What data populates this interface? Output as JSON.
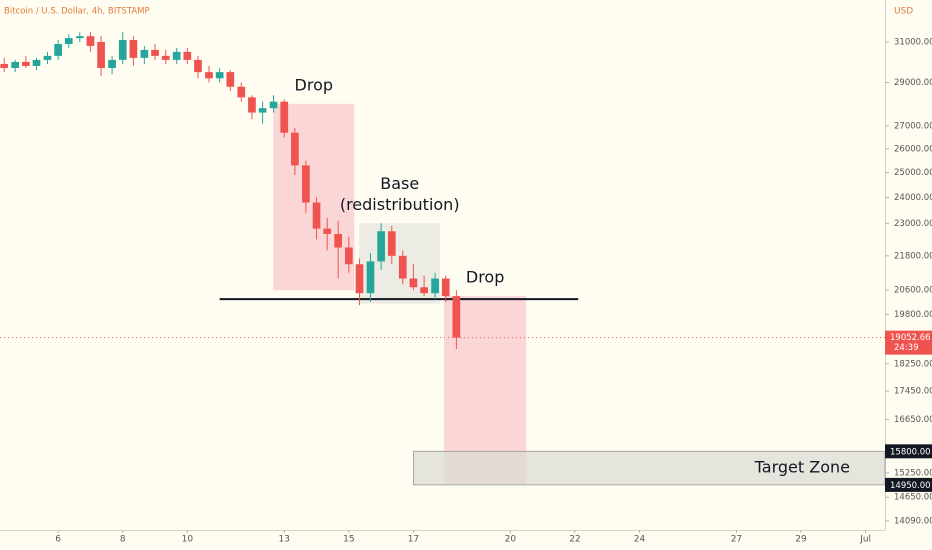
{
  "chart_data": {
    "type": "candlestick",
    "title": "Bitcoin / U.S. Dollar, 4h, BITSTAMP",
    "currency": "USD",
    "log_scale": true,
    "up_color": "#26a69a",
    "down_color": "#ef5350",
    "x": [
      4.33,
      4.67,
      5.0,
      5.33,
      5.67,
      6.0,
      6.33,
      6.67,
      7.0,
      7.33,
      7.67,
      8.0,
      8.33,
      8.67,
      9.0,
      9.33,
      9.67,
      10.0,
      10.33,
      10.67,
      11.0,
      11.33,
      11.67,
      12.0,
      12.33,
      12.67,
      13.0,
      13.33,
      13.67,
      14.0,
      14.33,
      14.67,
      15.0,
      15.33,
      15.67,
      16.0,
      16.33,
      16.67,
      17.0,
      17.33,
      17.67,
      18.0,
      18.33
    ],
    "open": [
      29900,
      29700,
      30000,
      29800,
      30100,
      30300,
      30900,
      31200,
      31300,
      31000,
      29700,
      30100,
      31100,
      30200,
      30600,
      30300,
      30100,
      30500,
      30100,
      29500,
      29200,
      29500,
      28800,
      28300,
      27600,
      27800,
      28100,
      26700,
      25300,
      23800,
      22800,
      22600,
      22100,
      21500,
      20500,
      21600,
      22700,
      21800,
      21000,
      20700,
      20500,
      21000,
      20400
    ],
    "high": [
      30200,
      30100,
      30300,
      30200,
      30500,
      31100,
      31400,
      31500,
      31500,
      31300,
      30300,
      31500,
      31300,
      30800,
      30900,
      30600,
      30700,
      30700,
      30300,
      29800,
      29700,
      29600,
      29000,
      28400,
      28100,
      28400,
      28200,
      26900,
      25500,
      24000,
      23200,
      23100,
      22500,
      21700,
      21900,
      23000,
      22900,
      22000,
      21500,
      21100,
      21200,
      21100,
      20600
    ],
    "low": [
      29500,
      29500,
      29700,
      29600,
      29900,
      30100,
      30700,
      31000,
      30500,
      29300,
      29400,
      29900,
      29800,
      29900,
      30100,
      29900,
      29900,
      29900,
      29200,
      29000,
      29000,
      28600,
      28100,
      27300,
      27100,
      27600,
      26500,
      24900,
      23400,
      22400,
      22000,
      21000,
      21200,
      20100,
      20200,
      21300,
      21500,
      20800,
      20600,
      20400,
      20300,
      20200,
      18700
    ],
    "close": [
      29700,
      30000,
      29800,
      30100,
      30300,
      30900,
      31200,
      31300,
      30800,
      29700,
      30100,
      31100,
      30200,
      30600,
      30300,
      30100,
      30500,
      30100,
      29500,
      29200,
      29500,
      28800,
      28300,
      27600,
      27800,
      28100,
      26700,
      25300,
      23800,
      22800,
      22600,
      22100,
      21500,
      20500,
      21600,
      22700,
      21800,
      21000,
      20700,
      20500,
      21000,
      20400,
      19052.66
    ],
    "last_price": 19052.66,
    "countdown": "24:39",
    "xlim": [
      4.2,
      31.6
    ],
    "ylim": [
      13880,
      33220
    ],
    "xticks": [
      6,
      8,
      10,
      13,
      15,
      17,
      20,
      22,
      24,
      27,
      29,
      {
        "value": 31,
        "label": "Jul"
      }
    ],
    "yticks": [
      {
        "value": 31000,
        "label": "31000.00"
      },
      {
        "value": 29000,
        "label": "29000.00"
      },
      {
        "value": 27000,
        "label": "27000.00"
      },
      {
        "value": 26000,
        "label": "26000.00"
      },
      {
        "value": 25000,
        "label": "25000.00"
      },
      {
        "value": 24000,
        "label": "24000.00"
      },
      {
        "value": 23000,
        "label": "23000.00"
      },
      {
        "value": 21800,
        "label": "21800.00"
      },
      {
        "value": 20600,
        "label": "20600.00"
      },
      {
        "value": 19800,
        "label": "19800.00"
      },
      {
        "value": 18250,
        "label": "18250.00"
      },
      {
        "value": 17450,
        "label": "17450.00"
      },
      {
        "value": 16650,
        "label": "16650.00"
      },
      {
        "value": 15250,
        "label": "15250.00"
      },
      {
        "value": 14650,
        "label": "14650.00"
      },
      {
        "value": 14090,
        "label": "14090.00"
      }
    ],
    "price_markers": [
      {
        "value": 15800,
        "label": "15800.00"
      },
      {
        "value": 14950,
        "label": "14950.00"
      }
    ],
    "zones": [
      {
        "labels": [
          "Drop"
        ],
        "xlim": [
          12.66,
          15.17
        ],
        "ylim": [
          20600,
          28000
        ],
        "color": "#f8c8cc",
        "label_pos": "top"
      },
      {
        "labels": [
          "Base",
          "(redistribution)"
        ],
        "xlim": [
          15.32,
          17.83
        ],
        "ylim": [
          20150,
          23000
        ],
        "color": "#e6e6e0",
        "label_pos": "top"
      },
      {
        "labels": [
          "Drop"
        ],
        "xlim": [
          17.95,
          20.49
        ],
        "ylim": [
          14950,
          20400
        ],
        "color": "#f8c8cc",
        "label_pos": "top"
      },
      {
        "labels": [
          "Target Zone"
        ],
        "xlim": [
          17.0,
          31.6
        ],
        "ylim": [
          14950,
          15800
        ],
        "color": "#dcdcd6",
        "label_pos": "right"
      }
    ],
    "hline": {
      "y": 20300,
      "xlim": [
        11.0,
        22.1
      ]
    }
  }
}
